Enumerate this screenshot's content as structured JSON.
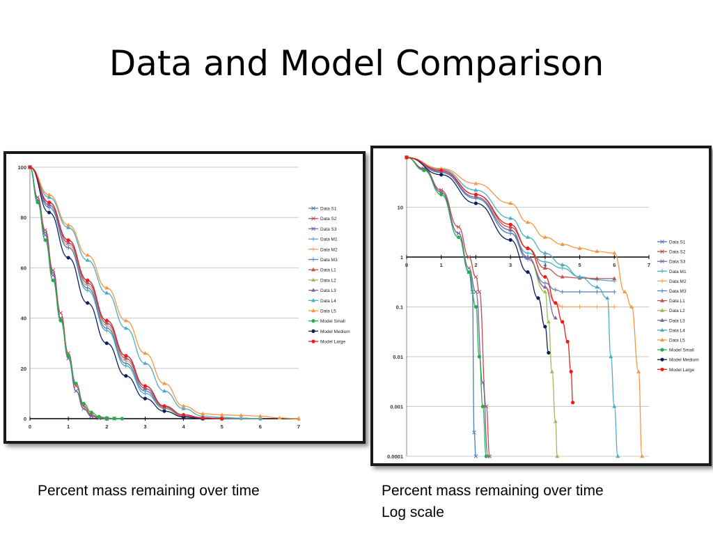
{
  "slide": {
    "title": "Data and Model Comparison",
    "caption_left": "Percent mass remaining over time",
    "caption_right_line1": "Percent mass remaining over time",
    "caption_right_line2": "Log scale"
  },
  "chart_data": [
    {
      "type": "line",
      "title": "",
      "xlabel": "",
      "ylabel": "",
      "xlim": [
        0,
        7
      ],
      "ylim": [
        0,
        100
      ],
      "x_ticks": [
        "0",
        "1",
        "2",
        "3",
        "4",
        "5",
        "6",
        "7"
      ],
      "y_ticks": [
        "0",
        "20",
        "40",
        "60",
        "80",
        "100"
      ],
      "grid": true,
      "legend_position": "right",
      "series": [
        {
          "name": "Data S1",
          "color": "#4a7ebb",
          "marker": "x",
          "x": [
            0,
            0.2,
            0.4,
            0.6,
            0.8,
            1.0,
            1.2,
            1.4,
            1.6,
            1.8,
            2.0
          ],
          "y": [
            100,
            88,
            74,
            58,
            40,
            24,
            11,
            4,
            1,
            0.2,
            0
          ]
        },
        {
          "name": "Data S2",
          "color": "#be4b48",
          "marker": "x",
          "x": [
            0,
            0.2,
            0.4,
            0.6,
            0.8,
            1.0,
            1.2,
            1.4,
            1.6,
            1.8,
            2.0,
            2.2
          ],
          "y": [
            100,
            88,
            75,
            59,
            42,
            26,
            13,
            5,
            1.5,
            0.4,
            0.1,
            0
          ]
        },
        {
          "name": "Data S3",
          "color": "#7d60a0",
          "marker": "x",
          "x": [
            0,
            0.2,
            0.4,
            0.6,
            0.8,
            1.0,
            1.2,
            1.4,
            1.6,
            1.8,
            2.0
          ],
          "y": [
            100,
            87,
            73,
            57,
            40,
            24,
            11,
            4,
            1,
            0.2,
            0
          ]
        },
        {
          "name": "Data M1",
          "color": "#46aac5",
          "marker": "+",
          "x": [
            0,
            0.5,
            1.0,
            1.5,
            2.0,
            2.5,
            3.0,
            3.5,
            4.0,
            4.5,
            5.0,
            5.5,
            6.0
          ],
          "y": [
            100,
            84,
            68,
            51,
            35,
            21,
            10,
            4,
            1,
            0.3,
            0.2,
            0.2,
            0
          ]
        },
        {
          "name": "Data M2",
          "color": "#f59d56",
          "marker": "+",
          "x": [
            0,
            0.5,
            1.0,
            1.5,
            2.0,
            2.5,
            3.0,
            3.5,
            4.0,
            4.5,
            5.0,
            5.5,
            6.0
          ],
          "y": [
            100,
            85,
            69,
            53,
            37,
            23,
            12,
            5,
            1.5,
            0.4,
            0.1,
            0.1,
            0
          ]
        },
        {
          "name": "Data  M3",
          "color": "#4f81bd",
          "marker": "+",
          "x": [
            0,
            0.5,
            1.0,
            1.5,
            2.0,
            2.5,
            3.0,
            3.5,
            4.0,
            4.5,
            5.0,
            5.5,
            6.0
          ],
          "y": [
            100,
            84,
            68,
            52,
            36,
            22,
            11,
            4,
            1,
            0.3,
            0.2,
            0.2,
            0
          ]
        },
        {
          "name": "Data L1",
          "color": "#c0504d",
          "marker": "^",
          "x": [
            0,
            0.5,
            1.0,
            1.5,
            2.0,
            2.5,
            3.0,
            3.5,
            4.0,
            4.5,
            5.0
          ],
          "y": [
            100,
            86,
            71,
            55,
            39,
            25,
            13,
            5,
            1.5,
            0.4,
            0
          ]
        },
        {
          "name": "Data L2",
          "color": "#9bbb59",
          "marker": "^",
          "x": [
            0,
            0.5,
            1.0,
            1.5,
            2.0,
            2.5,
            3.0,
            3.5,
            4.0,
            4.5
          ],
          "y": [
            100,
            85,
            70,
            54,
            38,
            24,
            12,
            4,
            1,
            0
          ]
        },
        {
          "name": "Data L3",
          "color": "#8064a2",
          "marker": "^",
          "x": [
            0,
            0.5,
            1.0,
            1.5,
            2.0,
            2.5,
            3.0,
            3.5,
            4.0,
            4.5
          ],
          "y": [
            100,
            85,
            70,
            54,
            38,
            24,
            12,
            4.5,
            1,
            0
          ]
        },
        {
          "name": "Data L4",
          "color": "#4bacc6",
          "marker": "^",
          "x": [
            0,
            0.5,
            1.0,
            1.5,
            2.0,
            2.5,
            3.0,
            3.5,
            4.0,
            4.5,
            5.0,
            5.5,
            6.0
          ],
          "y": [
            100,
            88,
            76,
            63,
            50,
            36,
            22,
            11,
            4,
            1,
            0.5,
            0.2,
            0
          ]
        },
        {
          "name": "Data L5",
          "color": "#f79646",
          "marker": "^",
          "x": [
            0,
            0.5,
            1.0,
            1.5,
            2.0,
            2.5,
            3.0,
            3.5,
            4.0,
            4.5,
            5.0,
            5.5,
            6.0,
            6.5,
            7.0
          ],
          "y": [
            100,
            89,
            77,
            65,
            52,
            39,
            26,
            14,
            5,
            2,
            1.5,
            1.3,
            1,
            0.3,
            0
          ]
        },
        {
          "name": "Model Small",
          "color": "#22b04c",
          "marker": "o",
          "x": [
            0,
            0.2,
            0.4,
            0.6,
            0.8,
            1.0,
            1.2,
            1.4,
            1.6,
            1.8,
            2.0,
            2.2,
            2.4
          ],
          "y": [
            100,
            86,
            71,
            55,
            39,
            25,
            14,
            6,
            2.5,
            0.8,
            0.3,
            0.1,
            0
          ]
        },
        {
          "name": "Model Medium",
          "color": "#0d1f5c",
          "marker": "o",
          "x": [
            0,
            0.5,
            1.0,
            1.5,
            2.0,
            2.5,
            3.0,
            3.5,
            4.0,
            4.5
          ],
          "y": [
            100,
            82,
            64,
            46,
            30,
            17,
            8,
            3,
            0.7,
            0
          ]
        },
        {
          "name": "Model Large",
          "color": "#ee1c1c",
          "marker": "o",
          "x": [
            0,
            0.5,
            1.0,
            1.5,
            2.0,
            2.5,
            3.0,
            3.5,
            4.0,
            4.5,
            5.0
          ],
          "y": [
            100,
            86,
            71,
            55,
            39,
            25,
            13,
            5,
            1.5,
            0.3,
            0
          ]
        }
      ]
    },
    {
      "type": "line",
      "title": "",
      "xlabel": "",
      "ylabel": "",
      "xlim": [
        0,
        7
      ],
      "ylim": [
        0.0001,
        100
      ],
      "y_scale": "log",
      "x_ticks": [
        "0",
        "1",
        "2",
        "3",
        "4",
        "5",
        "6",
        "7"
      ],
      "y_ticks": [
        "0.0001",
        "0.001",
        "0.01",
        "0.1",
        "1",
        "10"
      ],
      "grid": true,
      "legend_position": "right",
      "series": [
        {
          "name": "Data S1",
          "color": "#4a7ebb",
          "marker": "x",
          "x": [
            0,
            0.5,
            1.0,
            1.5,
            1.8,
            1.9,
            1.95,
            2.0
          ],
          "y": [
            100,
            60,
            20,
            3,
            0.5,
            0.2,
            0.0003,
            0.0001
          ]
        },
        {
          "name": "Data S2",
          "color": "#be4b48",
          "marker": "x",
          "x": [
            0,
            0.5,
            1.0,
            1.5,
            1.8,
            2.0,
            2.1,
            2.3,
            2.4
          ],
          "y": [
            100,
            60,
            22,
            4,
            1,
            0.4,
            0.2,
            0.001,
            0.0001
          ]
        },
        {
          "name": "Data S3",
          "color": "#7d60a0",
          "marker": "x",
          "x": [
            0,
            0.5,
            1.0,
            1.5,
            1.8,
            2.0,
            2.2,
            2.35
          ],
          "y": [
            100,
            58,
            20,
            3,
            0.6,
            0.2,
            0.003,
            0.0001
          ]
        },
        {
          "name": "Data M1",
          "color": "#46aac5",
          "marker": "+",
          "x": [
            0,
            1,
            2,
            3,
            3.5,
            4.0,
            4.5,
            5.0,
            5.5,
            6.0
          ],
          "y": [
            100,
            50,
            15,
            3,
            1.2,
            0.8,
            0.6,
            0.4,
            0.35,
            0.33
          ]
        },
        {
          "name": "Data M2",
          "color": "#f59d56",
          "marker": "+",
          "x": [
            0,
            1,
            2,
            3,
            3.5,
            4.0,
            4.3,
            4.5,
            5.0,
            5.5,
            6.0
          ],
          "y": [
            100,
            52,
            16,
            3.5,
            1,
            0.25,
            0.12,
            0.1,
            0.1,
            0.1,
            0.1
          ]
        },
        {
          "name": "Data  M3",
          "color": "#4f81bd",
          "marker": "+",
          "x": [
            0,
            1,
            2,
            3,
            3.5,
            4.0,
            4.3,
            4.5,
            5.0,
            5.5,
            6.0
          ],
          "y": [
            100,
            50,
            15,
            3,
            0.9,
            0.3,
            0.22,
            0.2,
            0.2,
            0.2,
            0.2
          ]
        },
        {
          "name": "Data L1",
          "color": "#c0504d",
          "marker": "^",
          "x": [
            0,
            1,
            2,
            3,
            3.5,
            4.0,
            4.5,
            5.0,
            5.5,
            6.0
          ],
          "y": [
            100,
            55,
            18,
            4,
            1.5,
            0.6,
            0.4,
            0.38,
            0.37,
            0.37
          ]
        },
        {
          "name": "Data L2",
          "color": "#9bbb59",
          "marker": "^",
          "x": [
            0,
            1,
            2,
            3,
            3.5,
            4.0,
            4.1,
            4.2,
            4.3,
            4.35
          ],
          "y": [
            100,
            52,
            16,
            3.5,
            1,
            0.2,
            0.05,
            0.005,
            0.0005,
            0.0001
          ]
        },
        {
          "name": "Data L3",
          "color": "#8064a2",
          "marker": "^",
          "x": [
            0,
            1,
            2,
            3,
            3.5,
            4.0,
            4.3
          ],
          "y": [
            100,
            52,
            16,
            3.5,
            1,
            0.25,
            0.06
          ]
        },
        {
          "name": "Data L4",
          "color": "#4bacc6",
          "marker": "^",
          "x": [
            0,
            1,
            2,
            3,
            3.5,
            4.0,
            4.5,
            5.0,
            5.5,
            5.8,
            5.9,
            6.0,
            6.1
          ],
          "y": [
            100,
            58,
            22,
            6,
            2.5,
            1.2,
            0.7,
            0.4,
            0.25,
            0.15,
            0.01,
            0.001,
            0.0001
          ]
        },
        {
          "name": "Data L5",
          "color": "#f79646",
          "marker": "^",
          "x": [
            0,
            1,
            2,
            3,
            3.5,
            4.0,
            4.5,
            5.0,
            5.5,
            6.0,
            6.3,
            6.5,
            6.7,
            6.8
          ],
          "y": [
            100,
            60,
            30,
            12,
            5,
            2.5,
            1.8,
            1.5,
            1.3,
            1.2,
            0.2,
            0.1,
            0.005,
            0.0001
          ]
        },
        {
          "name": "Model Small",
          "color": "#22b04c",
          "marker": "o",
          "x": [
            0,
            0.5,
            1.0,
            1.5,
            1.8,
            2.0,
            2.1,
            2.2,
            2.3
          ],
          "y": [
            100,
            55,
            18,
            2.5,
            0.5,
            0.1,
            0.01,
            0.001,
            0.0001
          ]
        },
        {
          "name": "Model Medium",
          "color": "#0d1f5c",
          "marker": "o",
          "x": [
            0,
            1,
            2,
            3,
            3.5,
            3.8,
            4.0,
            4.1
          ],
          "y": [
            100,
            45,
            12,
            2.2,
            0.5,
            0.15,
            0.04,
            0.012
          ]
        },
        {
          "name": "Model Large",
          "color": "#ee1c1c",
          "marker": "o",
          "x": [
            0,
            1,
            2,
            3,
            3.5,
            4.0,
            4.3,
            4.5,
            4.65,
            4.75,
            4.8
          ],
          "y": [
            100,
            55,
            18,
            4.5,
            1.5,
            0.4,
            0.12,
            0.05,
            0.02,
            0.005,
            0.0012
          ]
        }
      ]
    }
  ]
}
